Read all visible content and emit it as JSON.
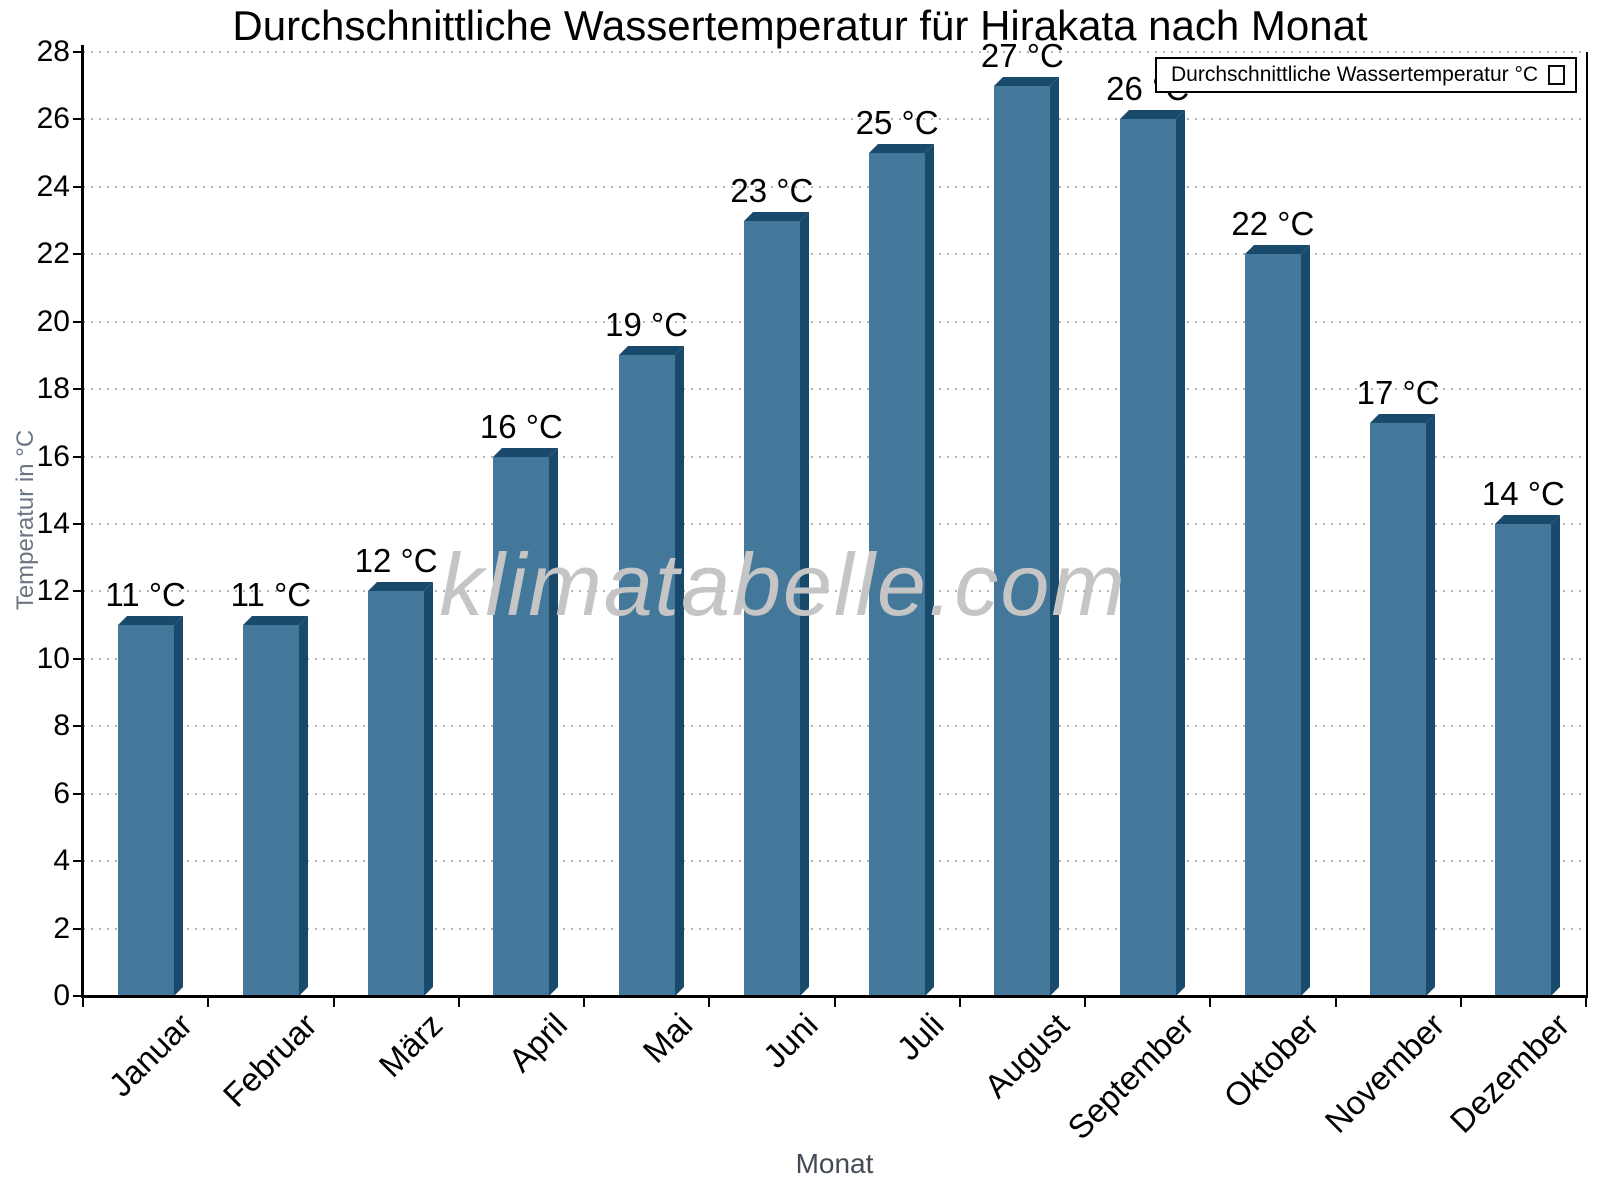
{
  "title": "Durchschnittliche Wassertemperatur für Hirakata nach Monat",
  "watermark": "klimatabelle.com",
  "y_axis_title": "Temperatur in °C",
  "x_axis_title": "Monat",
  "legend": {
    "label": "Durchschnittliche Wassertemperatur °C"
  },
  "colors": {
    "bar_front": "#44789B",
    "bar_side": "#1A4A6B",
    "grid": "#b4b4b4",
    "axis": "#000000",
    "axis_title_gray": "#6b7685",
    "watermark_gray": "#c5c5c5"
  },
  "chart_data": {
    "type": "bar",
    "title": "Durchschnittliche Wassertemperatur für Hirakata nach Monat",
    "categories": [
      "Januar",
      "Februar",
      "März",
      "April",
      "Mai",
      "Juni",
      "Juli",
      "August",
      "September",
      "Oktober",
      "November",
      "Dezember"
    ],
    "values": [
      11,
      11,
      12,
      16,
      19,
      23,
      25,
      27,
      26,
      22,
      17,
      14
    ],
    "unit": "°C",
    "value_labels": [
      "11 °C",
      "11 °C",
      "12 °C",
      "16 °C",
      "19 °C",
      "23 °C",
      "25 °C",
      "27 °C",
      "26 °C",
      "22 °C",
      "17 °C",
      "14 °C"
    ],
    "xlabel": "Monat",
    "ylabel": "Temperatur in °C",
    "ylim": [
      0,
      28
    ],
    "ytick_step": 2,
    "grid": "horizontal-dotted",
    "legend": "Durchschnittliche Wassertemperatur °C",
    "legend_position": "top-right",
    "bar_style": "3d-extruded"
  }
}
